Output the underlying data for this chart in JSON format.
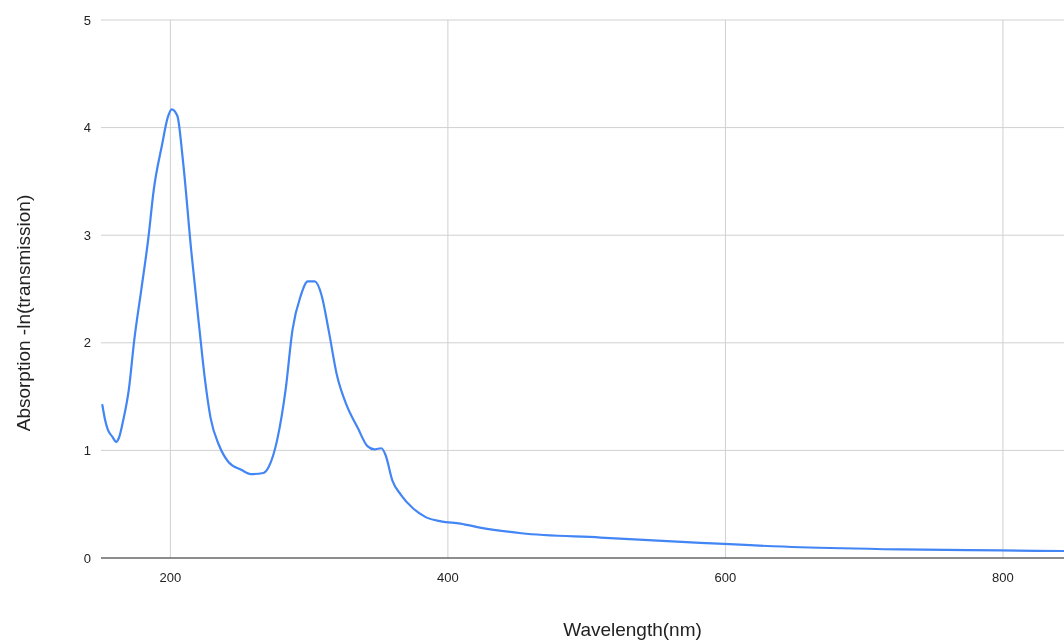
{
  "chart_data": {
    "type": "line",
    "xlabel": "Wavelength(nm)",
    "ylabel": "Absorption -ln(transmission)",
    "xlim": [
      150,
      844
    ],
    "xticks": [
      200,
      400,
      600,
      800
    ],
    "ylim": [
      0,
      5
    ],
    "yticks": [
      0,
      1,
      2,
      3,
      4,
      5
    ],
    "grid": true,
    "series": [
      {
        "color": "#4285f4",
        "x": [
          151,
          153,
          155,
          158,
          161,
          163,
          166,
          170,
          174,
          179,
          184,
          188,
          194,
          198,
          201,
          205,
          209,
          215,
          221,
          225,
          229,
          235,
          242,
          251,
          258,
          267,
          271,
          277,
          283,
          288,
          294,
          299,
          304,
          309,
          314,
          320,
          327,
          335,
          342,
          347,
          352,
          355,
          360,
          366,
          375,
          384,
          395,
          409,
          424,
          453,
          510,
          582,
          654,
          726,
          798,
          844
        ],
        "values": [
          1.42,
          1.28,
          1.19,
          1.13,
          1.08,
          1.12,
          1.28,
          1.56,
          2.03,
          2.49,
          2.96,
          3.42,
          3.84,
          4.09,
          4.17,
          4.11,
          3.7,
          2.86,
          2.12,
          1.65,
          1.3,
          1.05,
          0.89,
          0.82,
          0.78,
          0.79,
          0.85,
          1.1,
          1.56,
          2.12,
          2.44,
          2.57,
          2.57,
          2.44,
          2.12,
          1.7,
          1.42,
          1.21,
          1.04,
          1.01,
          1.02,
          0.96,
          0.72,
          0.59,
          0.46,
          0.38,
          0.34,
          0.32,
          0.28,
          0.23,
          0.19,
          0.14,
          0.1,
          0.08,
          0.07,
          0.065
        ]
      }
    ]
  }
}
